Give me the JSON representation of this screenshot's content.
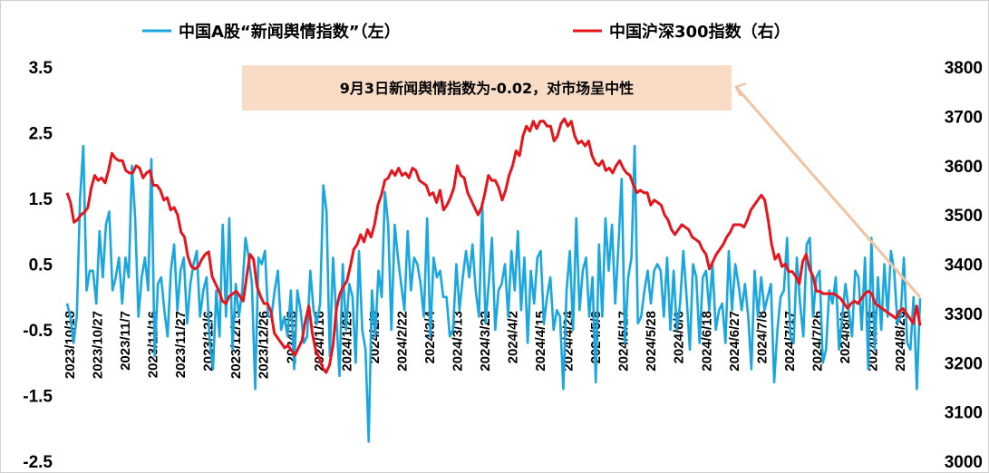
{
  "chart_data": {
    "type": "line",
    "legend": [
      "中国A股“新闻舆情指数”（左）",
      "中国沪深300指数（右）"
    ],
    "legend_position": "top",
    "annotation": "9月3日新闻舆情指数为-0.02，对市场呈中性",
    "y_left": {
      "ticks": [
        "3.5",
        "2.5",
        "1.5",
        "0.5",
        "-0.5",
        "-1.5",
        "-2.5"
      ],
      "range": [
        -2.5,
        3.5
      ]
    },
    "y_right": {
      "ticks": [
        "3800",
        "3700",
        "3600",
        "3500",
        "3400",
        "3300",
        "3200",
        "3100",
        "3000"
      ],
      "range": [
        3000,
        3800
      ]
    },
    "x_ticks": [
      "2023/10/18",
      "2023/10/27",
      "2023/11/7",
      "2023/11/16",
      "2023/11/27",
      "2023/12/6",
      "2023/12/15",
      "2023/12/26",
      "2024/1/5",
      "2024/1/16",
      "2024/1/25",
      "2024/2/5",
      "2024/2/22",
      "2024/3/4",
      "2024/3/13",
      "2024/3/22",
      "2024/4/2",
      "2024/4/15",
      "2024/4/24",
      "2024/5/8",
      "2024/5/17",
      "2024/5/28",
      "2024/6/6",
      "2024/6/18",
      "2024/6/27",
      "2024/7/8",
      "2024/7/17",
      "2024/7/26",
      "2024/8/6",
      "2024/8/15",
      "2024/8/26"
    ],
    "series": [
      {
        "name": "中国A股“新闻舆情指数”（左）",
        "axis": "left",
        "color": "#1AA7E0",
        "values": [
          -0.1,
          -0.3,
          -0.7,
          -0.3,
          1.5,
          2.3,
          0.1,
          0.4,
          0.4,
          -0.1,
          1.0,
          0.3,
          1.1,
          1.3,
          0.1,
          0.3,
          0.6,
          -0.1,
          0.6,
          0.3,
          2.0,
          1.2,
          -0.3,
          0.3,
          0.6,
          0.1,
          2.1,
          -0.9,
          0.2,
          0.3,
          -0.2,
          -0.6,
          0.4,
          0.8,
          -0.2,
          0.4,
          0.6,
          -0.4,
          0.2,
          0.5,
          0.7,
          -0.3,
          0.1,
          0.3,
          -0.7,
          -1.1,
          0.1,
          -0.6,
          1.1,
          -0.3,
          1.2,
          -0.8,
          0.2,
          -0.3,
          0.1,
          0.9,
          0.6,
          0.2,
          -1.4,
          0.6,
          0.5,
          0.7,
          -0.3,
          -0.3,
          0.1,
          0.4,
          -0.5,
          -0.3,
          -0.6,
          0.1,
          -1.1,
          0.1,
          -0.2,
          -0.7,
          -0.6,
          0.4,
          -0.2,
          -0.4,
          -0.1,
          1.7,
          1.3,
          -0.9,
          0.6,
          -0.3,
          -1.2,
          0.5,
          -0.5,
          0.2,
          0.0,
          -1.0,
          0.7,
          -0.5,
          -0.8,
          -2.2,
          0.1,
          -0.6,
          0.4,
          0.0,
          1.6,
          1.1,
          -0.5,
          1.1,
          0.6,
          0.2,
          -0.2,
          1.0,
          0.1,
          0.6,
          0.5,
          0.2,
          -0.3,
          1.2,
          -0.6,
          0.6,
          0.3,
          0.4,
          0.0,
          0.0,
          -0.6,
          -0.5,
          0.5,
          -0.2,
          0.3,
          0.7,
          0.3,
          0.8,
          0.1,
          -0.3,
          1.4,
          -0.4,
          0.2,
          0.9,
          -0.5,
          0.1,
          0.2,
          0.5,
          -0.3,
          0.7,
          0.1,
          1.0,
          -0.2,
          0.6,
          -0.7,
          0.4,
          -0.1,
          0.6,
          0.7,
          -0.4,
          0.0,
          0.3,
          -0.5,
          -0.2,
          -0.3,
          -1.4,
          0.1,
          0.7,
          -0.5,
          1.2,
          -0.2,
          0.4,
          0.6,
          -0.3,
          0.3,
          -1.3,
          0.8,
          -0.3,
          1.2,
          0.4,
          1.1,
          -0.1,
          0.8,
          1.8,
          -0.7,
          0.3,
          0.6,
          2.3,
          -0.4,
          -0.3,
          0.1,
          0.4,
          -0.1,
          0.4,
          0.5,
          0.4,
          -0.3,
          0.6,
          -0.5,
          0.4,
          -0.5,
          -0.1,
          0.7,
          0.0,
          -0.8,
          0.5,
          0.3,
          -0.7,
          0.3,
          0.4,
          -0.2,
          0.5,
          -0.5,
          -0.2,
          -0.1,
          -0.7,
          0.7,
          -0.2,
          0.5,
          0.2,
          -0.2,
          0.2,
          -0.3,
          -1.1,
          0.4,
          -0.3,
          0.3,
          -0.2,
          0.0,
          0.2,
          -1.3,
          -0.5,
          0.0,
          0.1,
          0.9,
          -0.6,
          -0.7,
          0.6,
          -0.1,
          -0.6,
          0.8,
          0.9,
          -0.3,
          0.3,
          0.4,
          -1.0,
          -0.8,
          0.1,
          -0.1,
          0.3,
          -0.8,
          -0.3,
          0.2,
          -0.2,
          -0.6,
          0.4,
          0.3,
          -0.5,
          0.6,
          -1.1,
          0.9,
          -0.8,
          0.3,
          -0.5,
          0.5,
          -0.3,
          0.7,
          0.4,
          -0.4,
          -0.3,
          0.6,
          -0.7,
          -0.8,
          0.0,
          -1.4,
          -0.02
        ]
      },
      {
        "name": "中国沪深300指数（右）",
        "axis": "right",
        "color": "#E8141B",
        "values": [
          3545,
          3525,
          3485,
          3490,
          3500,
          3505,
          3515,
          3555,
          3580,
          3570,
          3575,
          3565,
          3590,
          3625,
          3615,
          3610,
          3610,
          3590,
          3585,
          3585,
          3600,
          3595,
          3575,
          3585,
          3590,
          3560,
          3560,
          3550,
          3530,
          3535,
          3510,
          3515,
          3500,
          3465,
          3455,
          3415,
          3395,
          3390,
          3395,
          3410,
          3420,
          3425,
          3375,
          3360,
          3345,
          3325,
          3320,
          3335,
          3340,
          3345,
          3335,
          3325,
          3375,
          3420,
          3410,
          3355,
          3335,
          3320,
          3320,
          3305,
          3260,
          3250,
          3240,
          3230,
          3235,
          3225,
          3215,
          3230,
          3245,
          3285,
          3315,
          3260,
          3225,
          3210,
          3190,
          3180,
          3195,
          3235,
          3310,
          3340,
          3355,
          3365,
          3395,
          3430,
          3440,
          3460,
          3445,
          3470,
          3455,
          3480,
          3520,
          3540,
          3570,
          3575,
          3590,
          3580,
          3595,
          3580,
          3585,
          3575,
          3595,
          3590,
          3570,
          3565,
          3560,
          3540,
          3545,
          3525,
          3550,
          3510,
          3520,
          3535,
          3555,
          3600,
          3580,
          3575,
          3545,
          3530,
          3515,
          3500,
          3515,
          3545,
          3580,
          3570,
          3570,
          3555,
          3530,
          3550,
          3580,
          3600,
          3630,
          3620,
          3660,
          3680,
          3670,
          3690,
          3675,
          3690,
          3690,
          3680,
          3680,
          3650,
          3660,
          3685,
          3695,
          3680,
          3690,
          3660,
          3645,
          3650,
          3640,
          3650,
          3620,
          3605,
          3600,
          3610,
          3590,
          3595,
          3585,
          3600,
          3610,
          3595,
          3585,
          3580,
          3560,
          3545,
          3550,
          3545,
          3545,
          3520,
          3530,
          3525,
          3520,
          3500,
          3490,
          3470,
          3460,
          3470,
          3480,
          3475,
          3470,
          3455,
          3450,
          3445,
          3430,
          3420,
          3390,
          3405,
          3420,
          3430,
          3440,
          3455,
          3465,
          3480,
          3480,
          3480,
          3475,
          3490,
          3510,
          3520,
          3530,
          3540,
          3530,
          3490,
          3440,
          3410,
          3420,
          3395,
          3400,
          3385,
          3385,
          3375,
          3360,
          3405,
          3420,
          3390,
          3375,
          3345,
          3345,
          3340,
          3340,
          3340,
          3340,
          3335,
          3330,
          3320,
          3310,
          3320,
          3325,
          3320,
          3330,
          3340,
          3345,
          3340,
          3320,
          3315,
          3310,
          3305,
          3300,
          3295,
          3290,
          3305,
          3310,
          3300,
          3290,
          3280,
          3315,
          3275
        ]
      }
    ]
  }
}
